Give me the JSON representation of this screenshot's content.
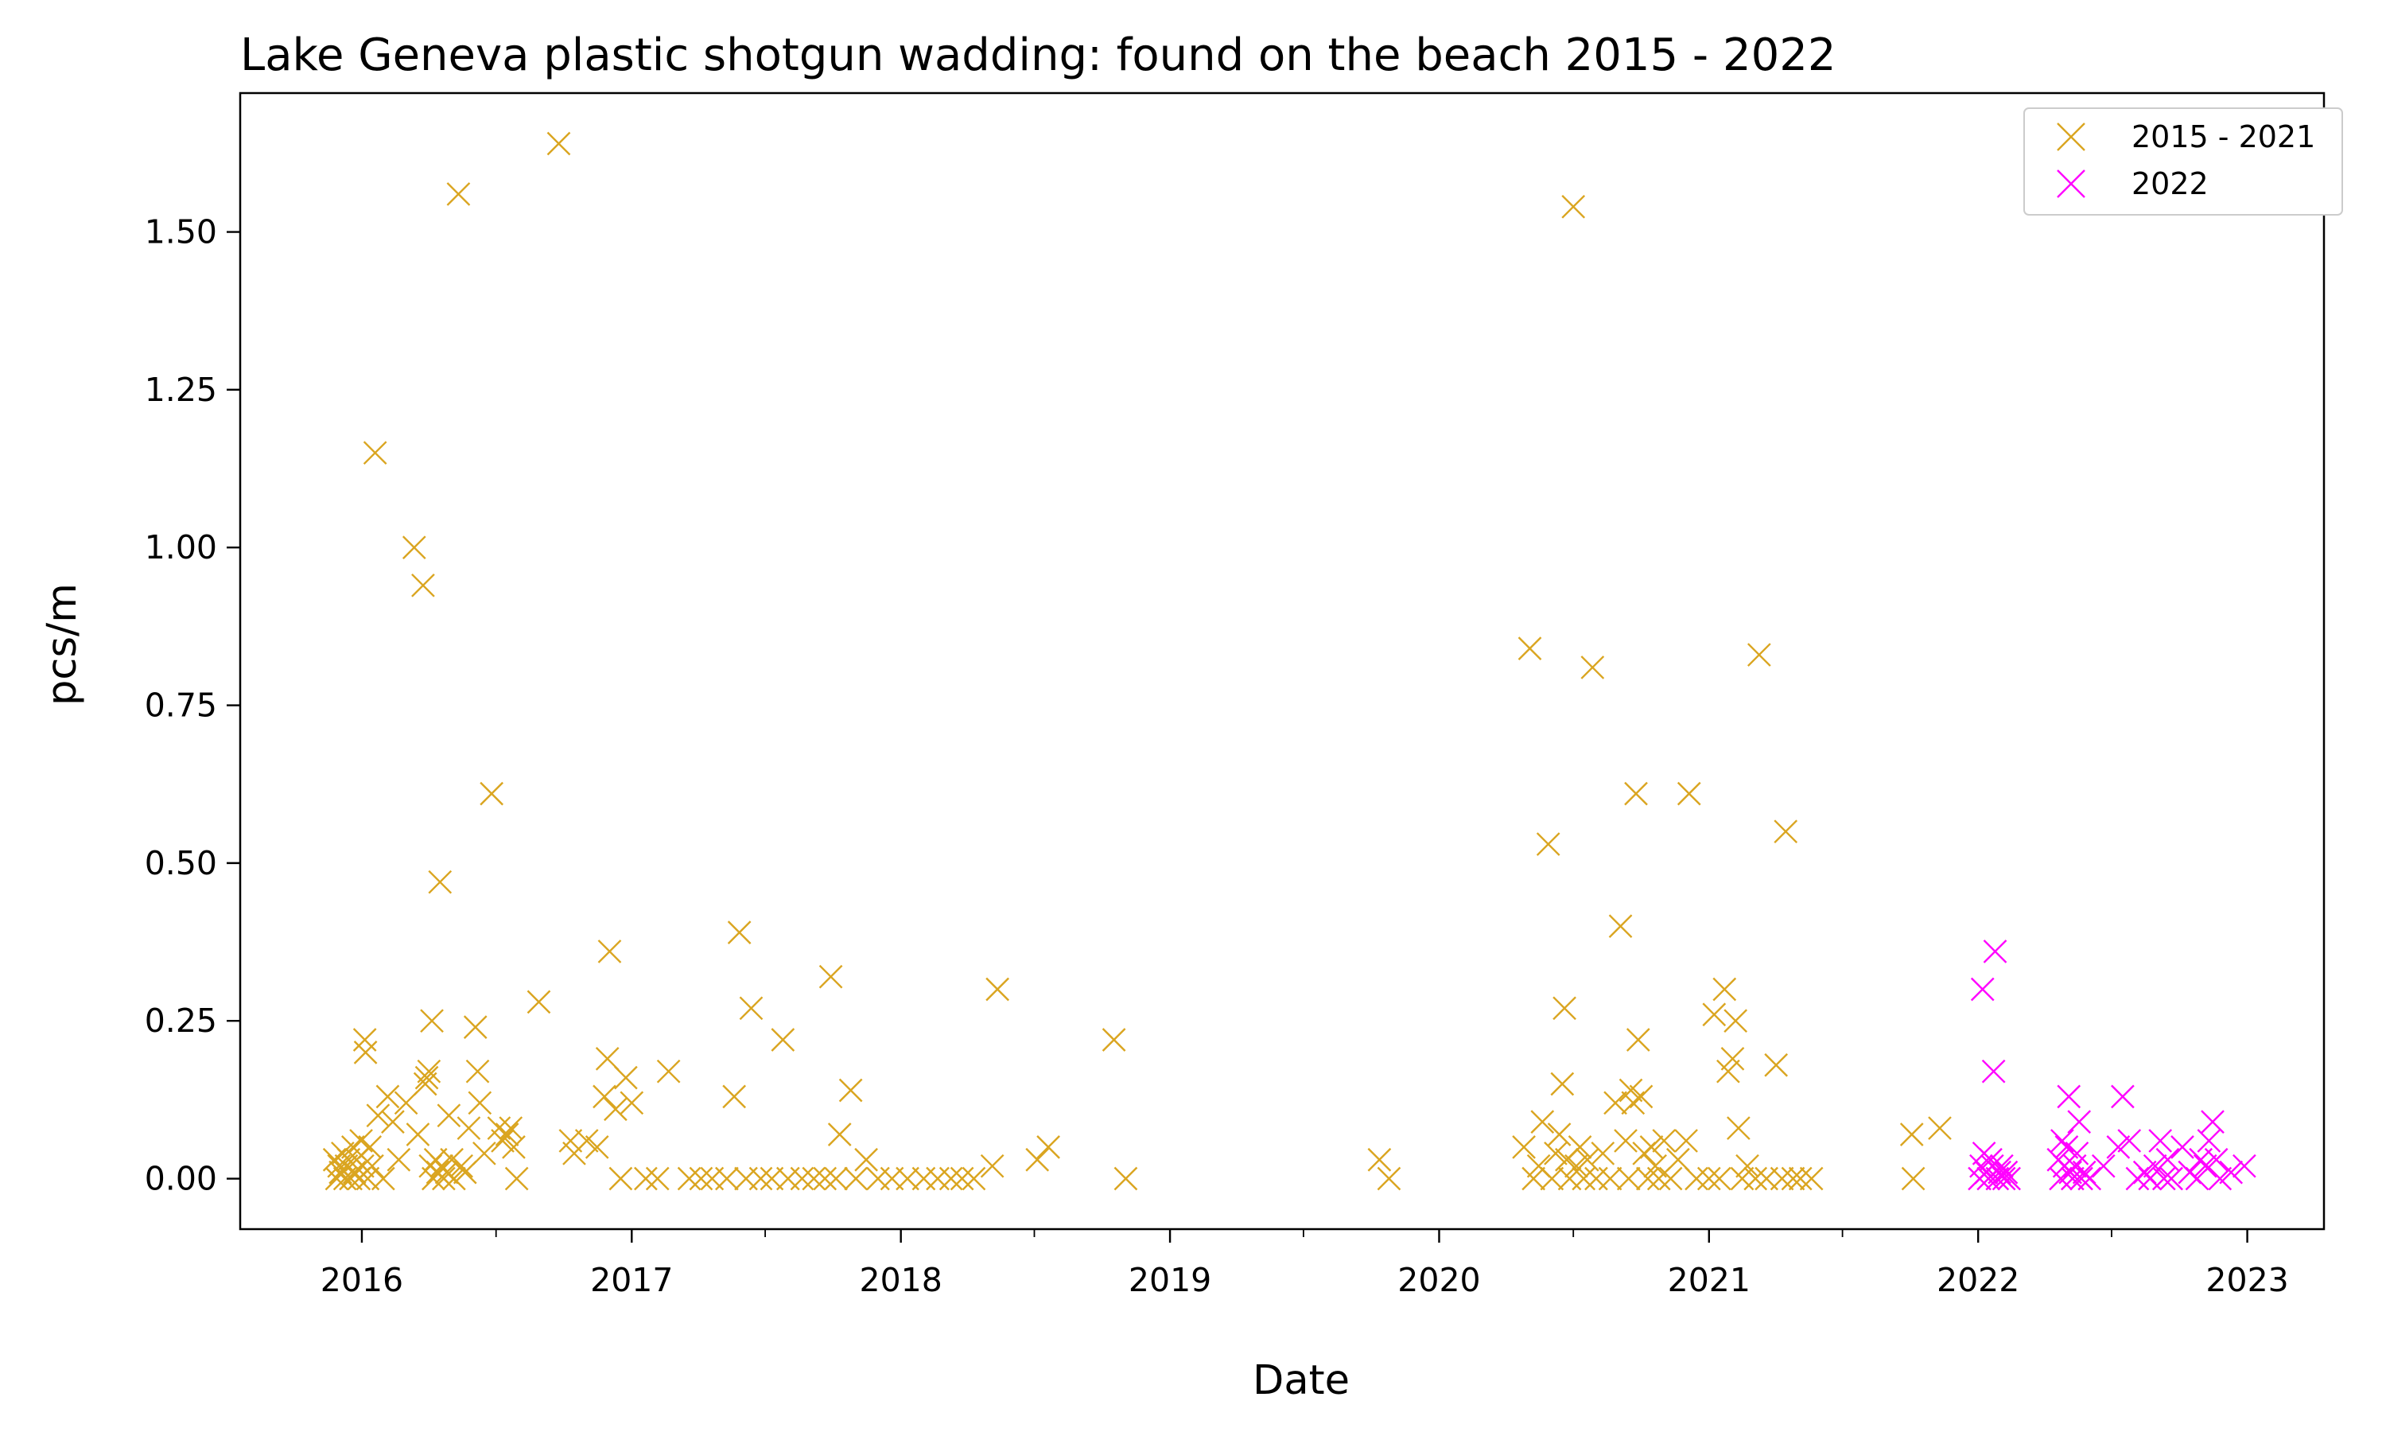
{
  "chart_data": {
    "type": "scatter",
    "title": "Lake Geneva plastic shotgun wadding: found on the beach 2015 - 2022",
    "xlabel": "Date",
    "ylabel": "pcs/m",
    "x_ticks": [
      "2016",
      "2017",
      "2018",
      "2019",
      "2020",
      "2021",
      "2022",
      "2023"
    ],
    "y_ticks": [
      "0.00",
      "0.25",
      "0.50",
      "0.75",
      "1.00",
      "1.25",
      "1.50"
    ],
    "x_range": [
      "2015-07-20",
      "2023-04-15"
    ],
    "ylim": [
      -0.08,
      1.72
    ],
    "grid": false,
    "legend_position": "top-right",
    "marker": "x",
    "series": [
      {
        "name": "2015 - 2021",
        "color": "#daa520",
        "points": [
          [
            "2015-11-25",
            0.03
          ],
          [
            "2015-11-28",
            0.0
          ],
          [
            "2015-12-01",
            0.02
          ],
          [
            "2015-12-03",
            0.01
          ],
          [
            "2015-12-06",
            0.04
          ],
          [
            "2015-12-09",
            0.0
          ],
          [
            "2015-12-11",
            0.02
          ],
          [
            "2015-12-14",
            0.03
          ],
          [
            "2015-12-17",
            0.0
          ],
          [
            "2015-12-20",
            0.05
          ],
          [
            "2015-12-22",
            0.01
          ],
          [
            "2015-12-25",
            0.03
          ],
          [
            "2015-12-28",
            0.0
          ],
          [
            "2015-12-31",
            0.06
          ],
          [
            "2016-01-02",
            0.02
          ],
          [
            "2016-01-05",
            0.22
          ],
          [
            "2016-01-06",
            0.2
          ],
          [
            "2016-01-09",
            0.0
          ],
          [
            "2016-01-12",
            0.05
          ],
          [
            "2016-01-15",
            0.02
          ],
          [
            "2016-01-19",
            1.15
          ],
          [
            "2016-01-23",
            0.1
          ],
          [
            "2016-01-30",
            0.0
          ],
          [
            "2016-02-05",
            0.13
          ],
          [
            "2016-02-12",
            0.09
          ],
          [
            "2016-02-20",
            0.03
          ],
          [
            "2016-03-01",
            0.12
          ],
          [
            "2016-03-12",
            1.0
          ],
          [
            "2016-03-17",
            0.07
          ],
          [
            "2016-03-24",
            0.94
          ],
          [
            "2016-03-27",
            0.15
          ],
          [
            "2016-03-29",
            0.16
          ],
          [
            "2016-04-01",
            0.17
          ],
          [
            "2016-04-03",
            0.02
          ],
          [
            "2016-04-05",
            0.25
          ],
          [
            "2016-04-07",
            0.0
          ],
          [
            "2016-04-10",
            0.03
          ],
          [
            "2016-04-13",
            0.01
          ],
          [
            "2016-04-16",
            0.47
          ],
          [
            "2016-04-18",
            0.02
          ],
          [
            "2016-04-21",
            0.0
          ],
          [
            "2016-04-25",
            0.01
          ],
          [
            "2016-04-28",
            0.1
          ],
          [
            "2016-05-02",
            0.03
          ],
          [
            "2016-05-05",
            0.0
          ],
          [
            "2016-05-11",
            1.56
          ],
          [
            "2016-05-15",
            0.02
          ],
          [
            "2016-05-20",
            0.01
          ],
          [
            "2016-05-25",
            0.08
          ],
          [
            "2016-06-03",
            0.24
          ],
          [
            "2016-06-06",
            0.17
          ],
          [
            "2016-06-09",
            0.12
          ],
          [
            "2016-06-15",
            0.04
          ],
          [
            "2016-06-25",
            0.61
          ],
          [
            "2016-07-05",
            0.08
          ],
          [
            "2016-07-10",
            0.06
          ],
          [
            "2016-07-16",
            0.07
          ],
          [
            "2016-07-21",
            0.08
          ],
          [
            "2016-07-25",
            0.05
          ],
          [
            "2016-07-29",
            0.0
          ],
          [
            "2016-08-28",
            0.28
          ],
          [
            "2016-09-24",
            1.64
          ],
          [
            "2016-10-10",
            0.06
          ],
          [
            "2016-10-15",
            0.04
          ],
          [
            "2016-11-01",
            0.06
          ],
          [
            "2016-11-15",
            0.05
          ],
          [
            "2016-11-25",
            0.13
          ],
          [
            "2016-11-29",
            0.19
          ],
          [
            "2016-12-02",
            0.36
          ],
          [
            "2016-12-10",
            0.11
          ],
          [
            "2016-12-17",
            0.0
          ],
          [
            "2016-12-24",
            0.16
          ],
          [
            "2017-01-01",
            0.12
          ],
          [
            "2017-01-20",
            0.0
          ],
          [
            "2017-02-05",
            0.0
          ],
          [
            "2017-02-20",
            0.17
          ],
          [
            "2017-03-20",
            0.0
          ],
          [
            "2017-04-05",
            0.0
          ],
          [
            "2017-04-20",
            0.0
          ],
          [
            "2017-05-10",
            0.0
          ],
          [
            "2017-05-20",
            0.13
          ],
          [
            "2017-05-27",
            0.39
          ],
          [
            "2017-06-05",
            0.0
          ],
          [
            "2017-06-12",
            0.27
          ],
          [
            "2017-06-25",
            0.0
          ],
          [
            "2017-07-10",
            0.0
          ],
          [
            "2017-07-25",
            0.22
          ],
          [
            "2017-08-01",
            0.0
          ],
          [
            "2017-08-20",
            0.0
          ],
          [
            "2017-09-05",
            0.0
          ],
          [
            "2017-09-20",
            0.0
          ],
          [
            "2017-09-28",
            0.32
          ],
          [
            "2017-10-05",
            0.0
          ],
          [
            "2017-10-10",
            0.07
          ],
          [
            "2017-10-25",
            0.14
          ],
          [
            "2017-11-01",
            0.0
          ],
          [
            "2017-11-15",
            0.03
          ],
          [
            "2017-12-01",
            0.0
          ],
          [
            "2017-12-20",
            0.0
          ],
          [
            "2018-01-10",
            0.0
          ],
          [
            "2018-02-01",
            0.0
          ],
          [
            "2018-02-20",
            0.0
          ],
          [
            "2018-03-10",
            0.0
          ],
          [
            "2018-03-25",
            0.0
          ],
          [
            "2018-04-10",
            0.0
          ],
          [
            "2018-05-05",
            0.02
          ],
          [
            "2018-05-12",
            0.3
          ],
          [
            "2018-07-05",
            0.03
          ],
          [
            "2018-07-20",
            0.05
          ],
          [
            "2018-10-17",
            0.22
          ],
          [
            "2018-11-02",
            0.0
          ],
          [
            "2019-10-12",
            0.03
          ],
          [
            "2019-10-25",
            0.0
          ],
          [
            "2020-04-25",
            0.05
          ],
          [
            "2020-05-03",
            0.84
          ],
          [
            "2020-05-08",
            0.0
          ],
          [
            "2020-05-15",
            0.02
          ],
          [
            "2020-05-20",
            0.09
          ],
          [
            "2020-05-28",
            0.53
          ],
          [
            "2020-06-02",
            0.0
          ],
          [
            "2020-06-07",
            0.04
          ],
          [
            "2020-06-12",
            0.07
          ],
          [
            "2020-06-16",
            0.15
          ],
          [
            "2020-06-19",
            0.27
          ],
          [
            "2020-06-22",
            0.03
          ],
          [
            "2020-06-26",
            0.0
          ],
          [
            "2020-07-01",
            1.54
          ],
          [
            "2020-07-05",
            0.02
          ],
          [
            "2020-07-10",
            0.05
          ],
          [
            "2020-07-15",
            0.0
          ],
          [
            "2020-07-20",
            0.03
          ],
          [
            "2020-07-27",
            0.81
          ],
          [
            "2020-08-01",
            0.0
          ],
          [
            "2020-08-10",
            0.04
          ],
          [
            "2020-08-20",
            0.0
          ],
          [
            "2020-08-27",
            0.12
          ],
          [
            "2020-09-03",
            0.4
          ],
          [
            "2020-09-10",
            0.06
          ],
          [
            "2020-09-14",
            0.0
          ],
          [
            "2020-09-17",
            0.14
          ],
          [
            "2020-09-20",
            0.12
          ],
          [
            "2020-09-24",
            0.61
          ],
          [
            "2020-09-27",
            0.22
          ],
          [
            "2020-10-01",
            0.13
          ],
          [
            "2020-10-05",
            0.04
          ],
          [
            "2020-10-10",
            0.0
          ],
          [
            "2020-10-15",
            0.05
          ],
          [
            "2020-10-20",
            0.02
          ],
          [
            "2020-10-25",
            0.0
          ],
          [
            "2020-11-01",
            0.06
          ],
          [
            "2020-11-10",
            0.0
          ],
          [
            "2020-11-20",
            0.03
          ],
          [
            "2020-12-01",
            0.06
          ],
          [
            "2020-12-05",
            0.61
          ],
          [
            "2020-12-15",
            0.0
          ],
          [
            "2021-01-01",
            0.0
          ],
          [
            "2021-01-08",
            0.26
          ],
          [
            "2021-01-15",
            0.0
          ],
          [
            "2021-01-22",
            0.3
          ],
          [
            "2021-01-27",
            0.17
          ],
          [
            "2021-02-02",
            0.19
          ],
          [
            "2021-02-06",
            0.25
          ],
          [
            "2021-02-10",
            0.08
          ],
          [
            "2021-02-15",
            0.0
          ],
          [
            "2021-02-22",
            0.02
          ],
          [
            "2021-03-05",
            0.0
          ],
          [
            "2021-03-10",
            0.83
          ],
          [
            "2021-03-20",
            0.0
          ],
          [
            "2021-04-02",
            0.18
          ],
          [
            "2021-04-10",
            0.0
          ],
          [
            "2021-04-15",
            0.55
          ],
          [
            "2021-04-25",
            0.0
          ],
          [
            "2021-05-05",
            0.0
          ],
          [
            "2021-05-20",
            0.0
          ],
          [
            "2021-10-03",
            0.07
          ],
          [
            "2021-10-05",
            0.0
          ],
          [
            "2021-11-10",
            0.08
          ]
        ]
      },
      {
        "name": "2022",
        "color": "#ff00ff",
        "points": [
          [
            "2022-01-03",
            0.0
          ],
          [
            "2022-01-05",
            0.02
          ],
          [
            "2022-01-07",
            0.3
          ],
          [
            "2022-01-09",
            0.04
          ],
          [
            "2022-01-12",
            0.01
          ],
          [
            "2022-01-15",
            0.0
          ],
          [
            "2022-01-18",
            0.03
          ],
          [
            "2022-01-20",
            0.02
          ],
          [
            "2022-01-22",
            0.17
          ],
          [
            "2022-01-24",
            0.36
          ],
          [
            "2022-01-27",
            0.0
          ],
          [
            "2022-01-30",
            0.01
          ],
          [
            "2022-02-02",
            0.02
          ],
          [
            "2022-02-05",
            0.0
          ],
          [
            "2022-02-08",
            0.01
          ],
          [
            "2022-02-12",
            0.0
          ],
          [
            "2022-04-20",
            0.03
          ],
          [
            "2022-04-23",
            0.0
          ],
          [
            "2022-04-25",
            0.06
          ],
          [
            "2022-04-28",
            0.02
          ],
          [
            "2022-05-01",
            0.05
          ],
          [
            "2022-05-04",
            0.13
          ],
          [
            "2022-05-06",
            0.01
          ],
          [
            "2022-05-09",
            0.0
          ],
          [
            "2022-05-12",
            0.02
          ],
          [
            "2022-05-15",
            0.04
          ],
          [
            "2022-05-18",
            0.09
          ],
          [
            "2022-05-21",
            0.0
          ],
          [
            "2022-05-25",
            0.01
          ],
          [
            "2022-06-01",
            0.0
          ],
          [
            "2022-06-20",
            0.02
          ],
          [
            "2022-07-10",
            0.05
          ],
          [
            "2022-07-16",
            0.13
          ],
          [
            "2022-07-25",
            0.06
          ],
          [
            "2022-08-05",
            0.0
          ],
          [
            "2022-08-15",
            0.01
          ],
          [
            "2022-08-22",
            0.0
          ],
          [
            "2022-08-29",
            0.02
          ],
          [
            "2022-09-05",
            0.06
          ],
          [
            "2022-09-10",
            0.0
          ],
          [
            "2022-09-15",
            0.03
          ],
          [
            "2022-09-20",
            0.0
          ],
          [
            "2022-10-05",
            0.05
          ],
          [
            "2022-10-15",
            0.01
          ],
          [
            "2022-10-25",
            0.0
          ],
          [
            "2022-10-30",
            0.03
          ],
          [
            "2022-11-05",
            0.02
          ],
          [
            "2022-11-10",
            0.06
          ],
          [
            "2022-11-15",
            0.09
          ],
          [
            "2022-11-20",
            0.03
          ],
          [
            "2022-11-25",
            0.0
          ],
          [
            "2022-12-10",
            0.01
          ],
          [
            "2022-12-28",
            0.02
          ]
        ]
      }
    ]
  }
}
